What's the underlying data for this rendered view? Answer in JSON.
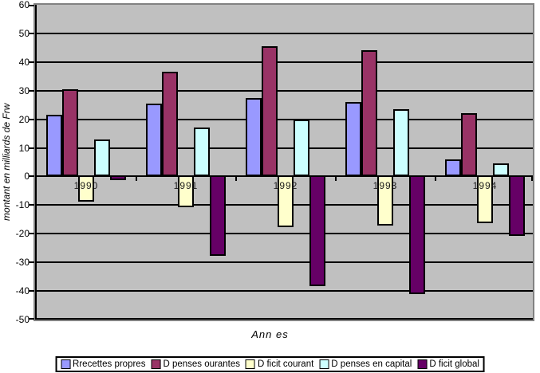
{
  "chart_data": {
    "type": "bar",
    "title": "",
    "xlabel": "Ann es",
    "ylabel": "montant en milliards de Frw",
    "categories": [
      "1990",
      "1991",
      "1992",
      "1993",
      "1994"
    ],
    "series": [
      {
        "name": "Rrecettes propres",
        "color": "#9999FF",
        "values": [
          21.5,
          25.5,
          27.5,
          26,
          6
        ]
      },
      {
        "name": "D penses ourantes",
        "color": "#993366",
        "values": [
          30.5,
          36.5,
          45.5,
          44,
          22
        ]
      },
      {
        "name": "D ficit courant",
        "color": "#FFFFCC",
        "values": [
          -9,
          -11,
          -18,
          -17.5,
          -16.5
        ]
      },
      {
        "name": "D penses en capital",
        "color": "#CCFFFF",
        "values": [
          13,
          17,
          20,
          23.5,
          4.5
        ]
      },
      {
        "name": "D ficit global",
        "color": "#660066",
        "values": [
          -1.5,
          -28,
          -38.5,
          -41.5,
          -21
        ]
      }
    ],
    "ylim": [
      -50,
      60
    ],
    "yticks": [
      60,
      50,
      40,
      30,
      20,
      10,
      0,
      -10,
      -20,
      -30,
      -40,
      -50
    ],
    "grid": true,
    "legend_position": "bottom",
    "plot_bg": "#C0C0C0",
    "outer_bg": "#FFFFFF",
    "gridline_color": "#000000"
  }
}
